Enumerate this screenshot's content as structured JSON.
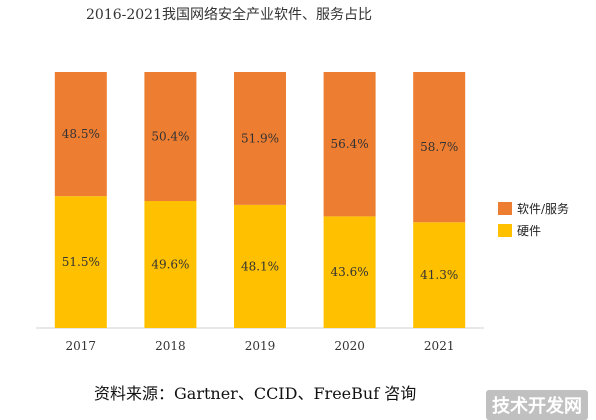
{
  "chart_data": {
    "type": "bar",
    "stacked": true,
    "title": "2016-2021我国网络安全产业软件、服务占比",
    "categories": [
      "2017",
      "2018",
      "2019",
      "2020",
      "2021"
    ],
    "series": [
      {
        "name": "硬件",
        "color": "#FFC000",
        "values": [
          51.5,
          49.6,
          48.1,
          43.6,
          41.3
        ],
        "labels": [
          "51.5%",
          "49.6%",
          "48.1%",
          "43.6%",
          "41.3%"
        ]
      },
      {
        "name": "软件/服务",
        "color": "#ED7D31",
        "values": [
          48.5,
          50.4,
          51.9,
          56.4,
          58.7
        ],
        "labels": [
          "48.5%",
          "50.4%",
          "51.9%",
          "56.4%",
          "58.7%"
        ]
      }
    ],
    "ylim": [
      0,
      100
    ],
    "legend_position": "right",
    "grid": false
  },
  "source": "资料来源：Gartner、CCID、FreeBuf 咨询",
  "watermark": "技术开发网"
}
